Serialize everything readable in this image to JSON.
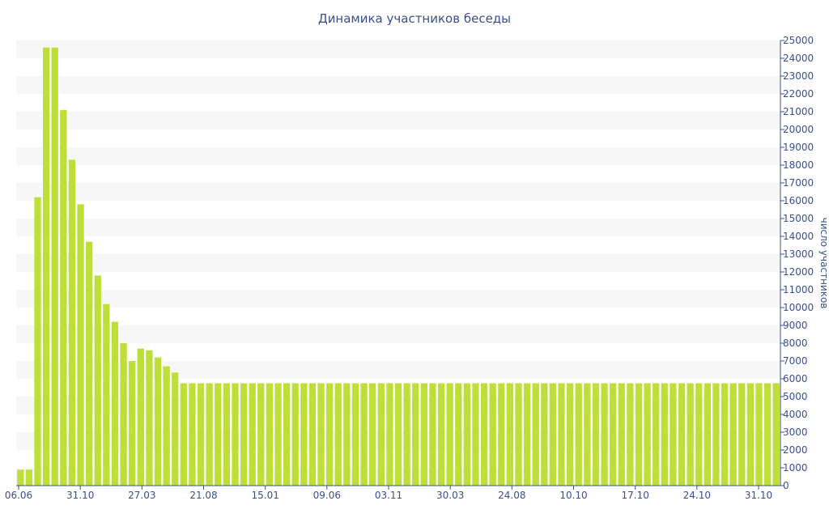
{
  "chart_data": {
    "type": "bar",
    "title": "Динамика участников беседы",
    "xlabel": "",
    "ylabel": "число участников",
    "ylim": [
      0,
      25000
    ],
    "yticks": [
      0,
      1000,
      2000,
      3000,
      4000,
      5000,
      6000,
      7000,
      8000,
      9000,
      10000,
      11000,
      12000,
      13000,
      14000,
      15000,
      16000,
      17000,
      18000,
      19000,
      20000,
      21000,
      22000,
      23000,
      24000,
      25000
    ],
    "xtick_labels": [
      "06.06",
      "31.10",
      "27.03",
      "21.08",
      "15.01",
      "09.06",
      "03.11",
      "30.03",
      "24.08",
      "10.10",
      "17.10",
      "24.10",
      "31.10"
    ],
    "grid": "horizontal bands",
    "y_axis_side": "right",
    "colors": {
      "bar": "#bedf37",
      "band": "#f7f7f7",
      "text": "#3b4f8f",
      "axis": "#3b4f8f"
    },
    "values": [
      900,
      900,
      16200,
      24600,
      24600,
      21100,
      18300,
      15800,
      13700,
      11800,
      10200,
      9200,
      8000,
      7000,
      7700,
      7600,
      7200,
      6700,
      6350,
      5750,
      5750,
      5750,
      5750,
      5750,
      5750,
      5750,
      5750,
      5750,
      5750,
      5750,
      5750,
      5750,
      5750,
      5750,
      5750,
      5750,
      5750,
      5750,
      5750,
      5750,
      5750,
      5750,
      5750,
      5750,
      5750,
      5750,
      5750,
      5750,
      5750,
      5750,
      5750,
      5750,
      5750,
      5750,
      5750,
      5750,
      5750,
      5750,
      5750,
      5750,
      5750,
      5750,
      5750,
      5750,
      5750,
      5750,
      5750,
      5750,
      5750,
      5750,
      5750,
      5750,
      5750,
      5750,
      5750,
      5750,
      5750,
      5750,
      5750,
      5750,
      5750,
      5750,
      5750,
      5750,
      5750,
      5750,
      5750,
      5750,
      5750
    ]
  }
}
